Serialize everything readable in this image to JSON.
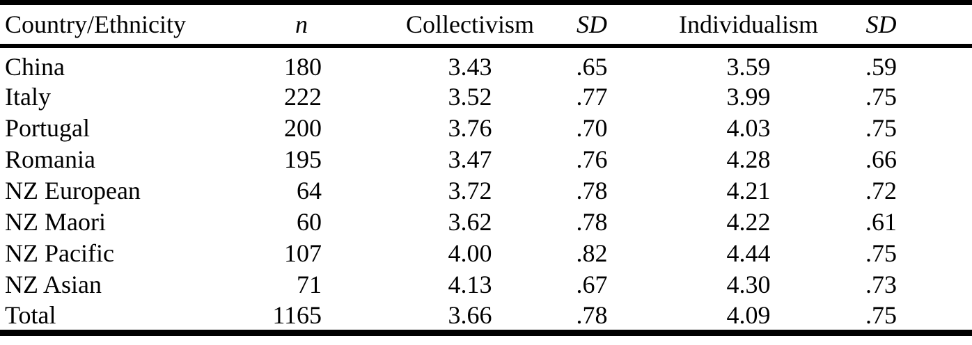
{
  "page": {
    "background_color": "#ffffff",
    "text_color": "#000000",
    "rule_color": "#000000"
  },
  "table": {
    "columns": [
      {
        "key": "country_ethnicity",
        "label": "Country/Ethnicity",
        "italic": false
      },
      {
        "key": "n",
        "label": "n",
        "italic": true
      },
      {
        "key": "collectivism",
        "label": "Collectivism",
        "italic": false
      },
      {
        "key": "collectivism_sd",
        "label": "SD",
        "italic": true
      },
      {
        "key": "individualism",
        "label": "Individualism",
        "italic": false
      },
      {
        "key": "individualism_sd",
        "label": "SD",
        "italic": true
      }
    ],
    "rows": [
      [
        "China",
        "180",
        "3.43",
        ".65",
        "3.59",
        ".59"
      ],
      [
        "Italy",
        "222",
        "3.52",
        ".77",
        "3.99",
        ".75"
      ],
      [
        "Portugal",
        "200",
        "3.76",
        ".70",
        "4.03",
        ".75"
      ],
      [
        "Romania",
        "195",
        "3.47",
        ".76",
        "4.28",
        ".66"
      ],
      [
        "NZ European",
        "64",
        "3.72",
        ".78",
        "4.21",
        ".72"
      ],
      [
        "NZ Maori",
        "60",
        "3.62",
        ".78",
        "4.22",
        ".61"
      ],
      [
        "NZ Pacific",
        "107",
        "4.00",
        ".82",
        "4.44",
        ".75"
      ],
      [
        "NZ Asian",
        "71",
        "4.13",
        ".67",
        "4.30",
        ".73"
      ],
      [
        "Total",
        "1165",
        "3.66",
        ".78",
        "4.09",
        ".75"
      ]
    ]
  }
}
